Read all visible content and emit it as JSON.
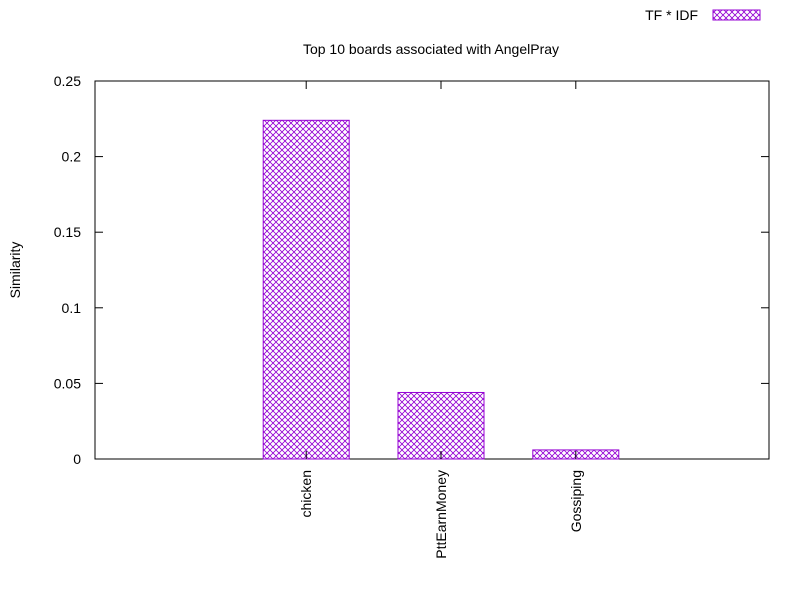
{
  "chart_data": {
    "type": "bar",
    "title": "Top 10 boards associated with AngelPray",
    "xlabel": "",
    "ylabel": "Similarity",
    "categories": [
      "chicken",
      "PttEarnMoney",
      "Gossiping"
    ],
    "series": [
      {
        "name": "TF * IDF",
        "values": [
          0.224,
          0.044,
          0.006
        ]
      }
    ],
    "ylim": [
      0,
      0.25
    ],
    "yticks": [
      "0",
      "0.05",
      "0.1",
      "0.15",
      "0.2",
      "0.25"
    ],
    "ytick_values": [
      0,
      0.05,
      0.1,
      0.15,
      0.2,
      0.25
    ],
    "grid": false,
    "legend_position": "top-right",
    "bar_color": "#9400d3",
    "bar_fill": "crosshatch"
  }
}
